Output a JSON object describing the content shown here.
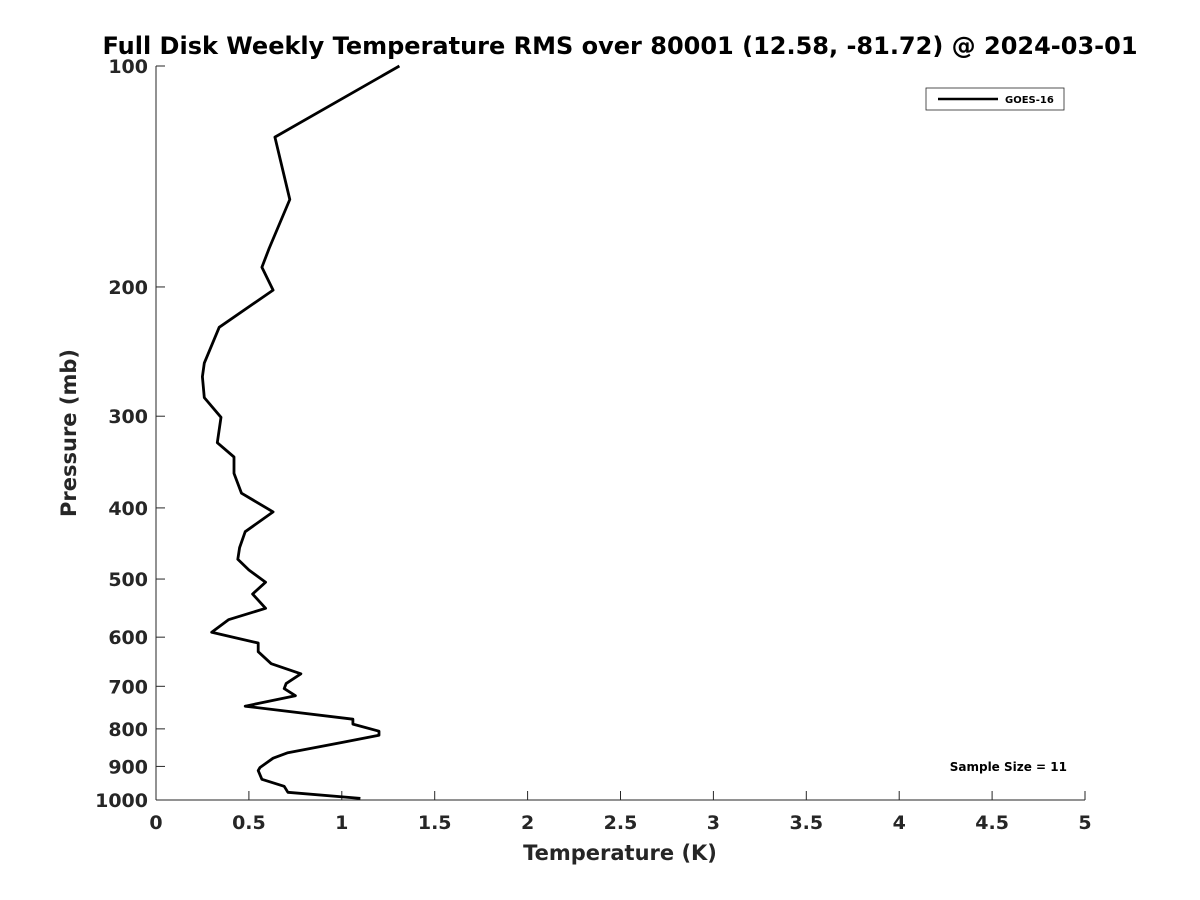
{
  "chart_data": {
    "type": "line",
    "title": "Full Disk Weekly Temperature RMS over 80001 (12.58, -81.72) @ 2024-03-01",
    "xlabel": "Temperature (K)",
    "ylabel": "Pressure (mb)",
    "xlim": [
      0,
      5
    ],
    "ylim": [
      100,
      1000
    ],
    "yscale": "log",
    "yreverse": true,
    "xticks": [
      0,
      0.5,
      1,
      1.5,
      2,
      2.5,
      3,
      3.5,
      4,
      4.5,
      5
    ],
    "xtick_labels": [
      "0",
      "0.5",
      "1",
      "1.5",
      "2",
      "2.5",
      "3",
      "3.5",
      "4",
      "4.5",
      "5"
    ],
    "yticks": [
      100,
      200,
      300,
      400,
      500,
      600,
      700,
      800,
      900,
      1000
    ],
    "ytick_labels": [
      "100",
      "200",
      "300",
      "400",
      "500",
      "600",
      "700",
      "800",
      "900",
      "1000"
    ],
    "legend_position": "top-right",
    "grid": false,
    "color": "#000000",
    "series": [
      {
        "name": "GOES-16",
        "points": [
          [
            1.31,
            100
          ],
          [
            0.64,
            125
          ],
          [
            0.72,
            152
          ],
          [
            0.61,
            177
          ],
          [
            0.57,
            188
          ],
          [
            0.63,
            202
          ],
          [
            0.34,
            227
          ],
          [
            0.26,
            254
          ],
          [
            0.25,
            265
          ],
          [
            0.26,
            283
          ],
          [
            0.35,
            301
          ],
          [
            0.33,
            326
          ],
          [
            0.42,
            341
          ],
          [
            0.42,
            359
          ],
          [
            0.46,
            382
          ],
          [
            0.63,
            405
          ],
          [
            0.48,
            431
          ],
          [
            0.45,
            453
          ],
          [
            0.44,
            470
          ],
          [
            0.5,
            486
          ],
          [
            0.59,
            505
          ],
          [
            0.52,
            524
          ],
          [
            0.59,
            548
          ],
          [
            0.39,
            568
          ],
          [
            0.3,
            591
          ],
          [
            0.55,
            611
          ],
          [
            0.55,
            628
          ],
          [
            0.62,
            652
          ],
          [
            0.78,
            673
          ],
          [
            0.7,
            694
          ],
          [
            0.69,
            705
          ],
          [
            0.75,
            721
          ],
          [
            0.48,
            745
          ],
          [
            1.06,
            776
          ],
          [
            1.06,
            788
          ],
          [
            1.2,
            806
          ],
          [
            1.2,
            816
          ],
          [
            1.01,
            834
          ],
          [
            0.71,
            862
          ],
          [
            0.63,
            877
          ],
          [
            0.56,
            903
          ],
          [
            0.55,
            912
          ],
          [
            0.57,
            937
          ],
          [
            0.69,
            958
          ],
          [
            0.71,
            976
          ],
          [
            1.1,
            995
          ]
        ]
      }
    ],
    "legend": [
      "GOES-16"
    ],
    "annotations": [
      "Sample Size = 11"
    ]
  }
}
